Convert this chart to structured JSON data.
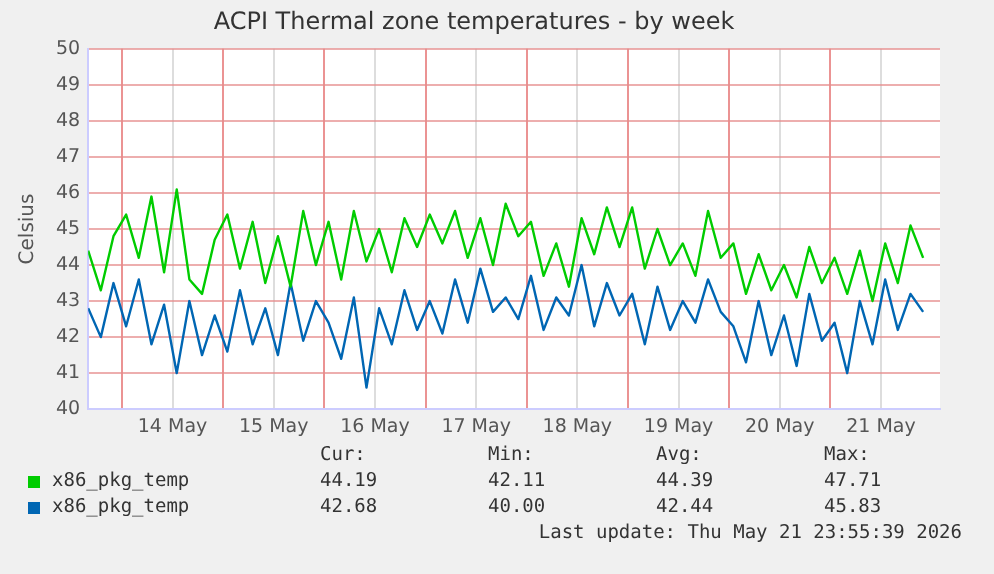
{
  "chart_data": {
    "type": "line",
    "title": "ACPI Thermal zone temperatures - by week",
    "ylabel": "Celsius",
    "x": [
      "2026-05-13T16:00",
      "2026-05-13T19:00",
      "2026-05-13T22:00",
      "2026-05-14T01:00",
      "2026-05-14T04:00",
      "2026-05-14T07:00",
      "2026-05-14T10:00",
      "2026-05-14T13:00",
      "2026-05-14T16:00",
      "2026-05-14T19:00",
      "2026-05-14T22:00",
      "2026-05-15T01:00",
      "2026-05-15T04:00",
      "2026-05-15T07:00",
      "2026-05-15T10:00",
      "2026-05-15T13:00",
      "2026-05-15T16:00",
      "2026-05-15T19:00",
      "2026-05-15T22:00",
      "2026-05-16T01:00",
      "2026-05-16T04:00",
      "2026-05-16T07:00",
      "2026-05-16T10:00",
      "2026-05-16T13:00",
      "2026-05-16T16:00",
      "2026-05-16T19:00",
      "2026-05-16T22:00",
      "2026-05-17T01:00",
      "2026-05-17T04:00",
      "2026-05-17T07:00",
      "2026-05-17T10:00",
      "2026-05-17T13:00",
      "2026-05-17T16:00",
      "2026-05-17T19:00",
      "2026-05-17T22:00",
      "2026-05-18T01:00",
      "2026-05-18T04:00",
      "2026-05-18T07:00",
      "2026-05-18T10:00",
      "2026-05-18T13:00",
      "2026-05-18T16:00",
      "2026-05-18T19:00",
      "2026-05-18T22:00",
      "2026-05-19T01:00",
      "2026-05-19T04:00",
      "2026-05-19T07:00",
      "2026-05-19T10:00",
      "2026-05-19T13:00",
      "2026-05-19T16:00",
      "2026-05-19T19:00",
      "2026-05-19T22:00",
      "2026-05-20T01:00",
      "2026-05-20T04:00",
      "2026-05-20T07:00",
      "2026-05-20T10:00",
      "2026-05-20T13:00",
      "2026-05-20T16:00",
      "2026-05-20T19:00",
      "2026-05-20T22:00",
      "2026-05-21T01:00",
      "2026-05-21T04:00",
      "2026-05-21T07:00",
      "2026-05-21T10:00",
      "2026-05-21T13:00",
      "2026-05-21T16:00",
      "2026-05-21T19:00",
      "2026-05-21T22:00"
    ],
    "series": [
      {
        "name": "x86_pkg_temp",
        "color": "#00cc00",
        "values": [
          44.4,
          43.3,
          44.8,
          45.4,
          44.2,
          45.9,
          43.8,
          46.1,
          43.6,
          43.2,
          44.7,
          45.4,
          43.9,
          45.2,
          43.5,
          44.8,
          43.4,
          45.5,
          44.0,
          45.2,
          43.6,
          45.5,
          44.1,
          45.0,
          43.8,
          45.3,
          44.5,
          45.4,
          44.6,
          45.5,
          44.2,
          45.3,
          44.0,
          45.7,
          44.8,
          45.2,
          43.7,
          44.6,
          43.4,
          45.3,
          44.3,
          45.6,
          44.5,
          45.6,
          43.9,
          45.0,
          44.0,
          44.6,
          43.7,
          45.5,
          44.2,
          44.6,
          43.2,
          44.3,
          43.3,
          44.0,
          43.1,
          44.5,
          43.5,
          44.2,
          43.2,
          44.4,
          43.0,
          44.6,
          43.5,
          45.1,
          44.2
        ]
      },
      {
        "name": "x86_pkg_temp",
        "color": "#0066b3",
        "values": [
          42.8,
          42.0,
          43.5,
          42.3,
          43.6,
          41.8,
          42.9,
          41.0,
          43.0,
          41.5,
          42.6,
          41.6,
          43.3,
          41.8,
          42.8,
          41.5,
          43.5,
          41.9,
          43.0,
          42.4,
          41.4,
          43.1,
          40.6,
          42.8,
          41.8,
          43.3,
          42.2,
          43.0,
          42.1,
          43.6,
          42.4,
          43.9,
          42.7,
          43.1,
          42.5,
          43.7,
          42.2,
          43.1,
          42.6,
          44.0,
          42.3,
          43.5,
          42.6,
          43.2,
          41.8,
          43.4,
          42.2,
          43.0,
          42.4,
          43.6,
          42.7,
          42.3,
          41.3,
          43.0,
          41.5,
          42.6,
          41.2,
          43.2,
          41.9,
          42.4,
          41.0,
          43.0,
          41.8,
          43.6,
          42.2,
          43.2,
          42.7
        ]
      }
    ],
    "xlim": [
      "2026-05-13T16:00",
      "2026-05-22T02:00"
    ],
    "xticks": [
      {
        "value": "2026-05-14T00:00",
        "label": null
      },
      {
        "value": "2026-05-14T12:00",
        "label": "14 May"
      },
      {
        "value": "2026-05-15T00:00",
        "label": null
      },
      {
        "value": "2026-05-15T12:00",
        "label": "15 May"
      },
      {
        "value": "2026-05-16T00:00",
        "label": null
      },
      {
        "value": "2026-05-16T12:00",
        "label": "16 May"
      },
      {
        "value": "2026-05-17T00:00",
        "label": null
      },
      {
        "value": "2026-05-17T12:00",
        "label": "17 May"
      },
      {
        "value": "2026-05-18T00:00",
        "label": null
      },
      {
        "value": "2026-05-18T12:00",
        "label": "18 May"
      },
      {
        "value": "2026-05-19T00:00",
        "label": null
      },
      {
        "value": "2026-05-19T12:00",
        "label": "19 May"
      },
      {
        "value": "2026-05-20T00:00",
        "label": null
      },
      {
        "value": "2026-05-20T12:00",
        "label": "20 May"
      },
      {
        "value": "2026-05-21T00:00",
        "label": null
      },
      {
        "value": "2026-05-21T12:00",
        "label": "21 May"
      }
    ],
    "ylim": [
      40,
      50
    ],
    "yticks": [
      40,
      41,
      42,
      43,
      44,
      45,
      46,
      47,
      48,
      49,
      50
    ],
    "grid": true,
    "legend": "bottom",
    "marker": "none",
    "line_style": "solid",
    "annotations": [
      "Cur:",
      "Min:",
      "Avg:",
      "Max:",
      "44.19",
      "42.11",
      "44.39",
      "47.71",
      "42.68",
      "40.00",
      "42.44",
      "45.83",
      "Last update: Thu May 21 23:55:39 2026"
    ]
  }
}
